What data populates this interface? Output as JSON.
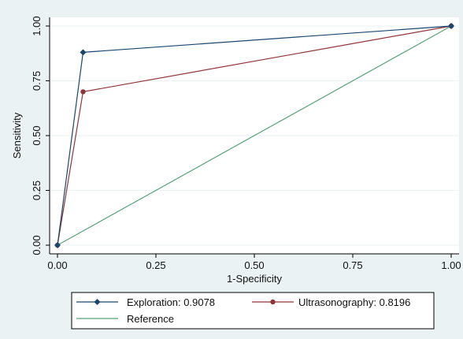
{
  "chart_data": {
    "type": "line",
    "title": "",
    "xlabel": "1-Specificity",
    "ylabel": "Sensitivity",
    "xlim": [
      0,
      1
    ],
    "ylim": [
      0,
      1
    ],
    "x_ticks": [
      "0.00",
      "0.25",
      "0.50",
      "0.75",
      "1.00"
    ],
    "y_ticks": [
      "0.00",
      "0.25",
      "0.50",
      "0.75",
      "1.00"
    ],
    "grid": "horizontal",
    "legend_position": "bottom",
    "series": [
      {
        "name": "Exploration: 0.9078",
        "color": "#1a476f",
        "marker": "diamond",
        "x": [
          0,
          0.065,
          1
        ],
        "y": [
          0,
          0.88,
          1
        ]
      },
      {
        "name": "Ultrasonography: 0.8196",
        "color": "#90353b",
        "marker": "circle",
        "x": [
          0,
          0.065,
          1
        ],
        "y": [
          0,
          0.7,
          1
        ]
      },
      {
        "name": "Reference",
        "color": "#55a47b",
        "marker": "none",
        "x": [
          0,
          1
        ],
        "y": [
          0,
          1
        ]
      }
    ]
  }
}
